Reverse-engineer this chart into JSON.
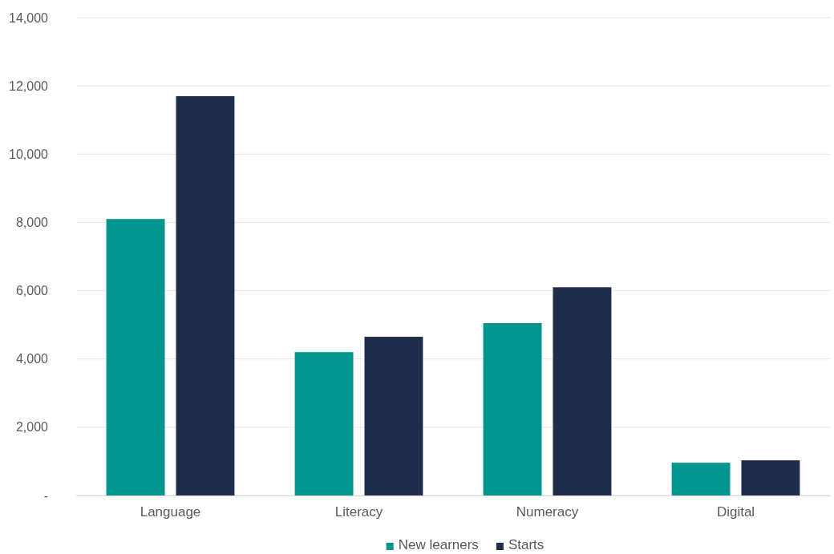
{
  "chart_data": {
    "type": "bar",
    "categories": [
      "Language",
      "Literacy",
      "Numeracy",
      "Digital"
    ],
    "series": [
      {
        "name": "New learners",
        "color": "#00968f",
        "values": [
          8100,
          4200,
          5050,
          960
        ]
      },
      {
        "name": "Starts",
        "color": "#1f2d4a",
        "values": [
          11700,
          4650,
          6100,
          1030
        ]
      }
    ],
    "ylim": [
      0,
      14000
    ],
    "yticks": [
      {
        "value": 0,
        "label": "-"
      },
      {
        "value": 2000,
        "label": "2,000"
      },
      {
        "value": 4000,
        "label": "4,000"
      },
      {
        "value": 6000,
        "label": "6,000"
      },
      {
        "value": 8000,
        "label": "8,000"
      },
      {
        "value": 10000,
        "label": "10,000"
      },
      {
        "value": 12000,
        "label": "12,000"
      },
      {
        "value": 14000,
        "label": "14,000"
      }
    ],
    "grid": "y",
    "legend": "bottom"
  }
}
